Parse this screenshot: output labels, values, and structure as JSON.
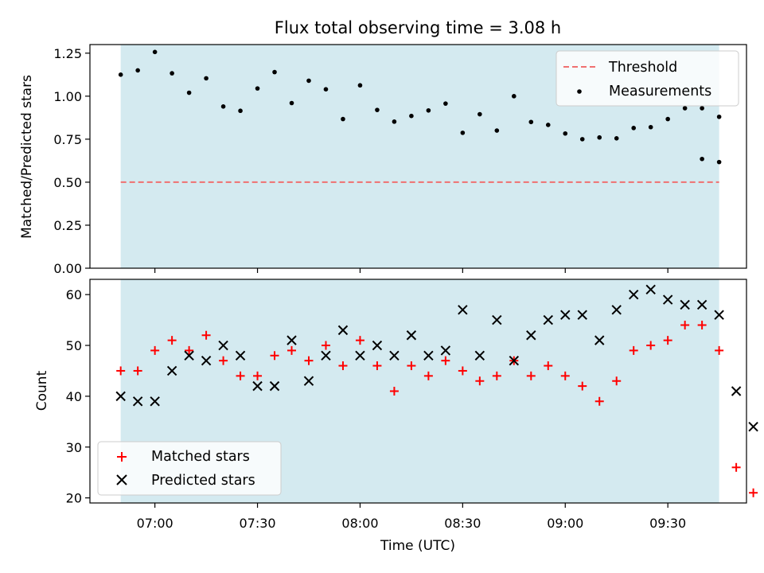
{
  "chart_data": [
    {
      "type": "scatter",
      "title": "Flux total observing time = 3.08 h",
      "xlabel": "",
      "ylabel": "Matched/Predicted stars",
      "x_ticks": [
        "07:00",
        "07:30",
        "08:00",
        "08:30",
        "09:00",
        "09:30"
      ],
      "x_tick_times": [
        "07:00",
        "07:30",
        "08:00",
        "08:30",
        "09:00",
        "09:30"
      ],
      "xlim": [
        "06:41",
        "09:53"
      ],
      "ylim": [
        0,
        1.3
      ],
      "y_ticks": [
        "0.00",
        "0.25",
        "0.50",
        "0.75",
        "1.00",
        "1.25"
      ],
      "y_tick_values": [
        0,
        0.25,
        0.5,
        0.75,
        1.0,
        1.25
      ],
      "shaded_span": [
        "06:50",
        "09:45"
      ],
      "shaded_color": "#d4eaf0",
      "threshold": {
        "name": "Threshold",
        "value": 0.5,
        "color": "#f07070"
      },
      "x": [
        "06:50",
        "06:55",
        "07:00",
        "07:05",
        "07:10",
        "07:15",
        "07:20",
        "07:25",
        "07:30",
        "07:35",
        "07:40",
        "07:45",
        "07:50",
        "07:55",
        "08:00",
        "08:05",
        "08:10",
        "08:15",
        "08:20",
        "08:25",
        "08:30",
        "08:35",
        "08:40",
        "08:45",
        "08:50",
        "08:55",
        "09:00",
        "09:05",
        "09:10",
        "09:15",
        "09:20",
        "09:25",
        "09:30",
        "09:35",
        "09:40",
        "09:45"
      ],
      "series": [
        {
          "name": "Measurements",
          "color": "#000000",
          "marker": "dot",
          "values": [
            1.125,
            1.15,
            1.257,
            1.133,
            1.02,
            1.104,
            0.94,
            0.915,
            1.045,
            1.14,
            0.96,
            1.09,
            1.04,
            0.867,
            1.063,
            0.92,
            0.852,
            0.885,
            0.917,
            0.957,
            0.787,
            0.895,
            0.8,
            1.0,
            0.85,
            0.833,
            0.783,
            0.75,
            0.76,
            0.755,
            0.815,
            0.82,
            0.867,
            0.93,
            0.93,
            0.88
          ]
        }
      ],
      "extra_points": {
        "x": [
          "09:40",
          "09:45"
        ],
        "values": [
          0.635,
          0.617
        ]
      },
      "legend_position": "top-right"
    },
    {
      "type": "scatter",
      "title": "",
      "xlabel": "Time (UTC)",
      "ylabel": "Count",
      "x_ticks": [
        "07:00",
        "07:30",
        "08:00",
        "08:30",
        "09:00",
        "09:30"
      ],
      "xlim": [
        "06:41",
        "09:53"
      ],
      "ylim": [
        19,
        63
      ],
      "y_ticks": [
        "20",
        "30",
        "40",
        "50",
        "60"
      ],
      "y_tick_values": [
        20,
        30,
        40,
        50,
        60
      ],
      "x": [
        "06:50",
        "06:55",
        "07:00",
        "07:05",
        "07:10",
        "07:15",
        "07:20",
        "07:25",
        "07:30",
        "07:35",
        "07:40",
        "07:45",
        "07:50",
        "07:55",
        "08:00",
        "08:05",
        "08:10",
        "08:15",
        "08:20",
        "08:25",
        "08:30",
        "08:35",
        "08:40",
        "08:45",
        "08:50",
        "08:55",
        "09:00",
        "09:05",
        "09:10",
        "09:15",
        "09:20",
        "09:25",
        "09:30",
        "09:35",
        "09:40",
        "09:45",
        "09:50",
        "09:55"
      ],
      "series": [
        {
          "name": "Matched stars",
          "color": "#ff0000",
          "marker": "plus",
          "values": [
            45,
            45,
            49,
            51,
            49,
            52,
            47,
            44,
            44,
            48,
            49,
            47,
            50,
            46,
            51,
            46,
            41,
            46,
            44,
            47,
            45,
            43,
            44,
            47,
            44,
            46,
            44,
            42,
            39,
            43,
            49,
            50,
            51,
            54,
            54,
            49,
            26,
            21
          ]
        },
        {
          "name": "Predicted stars",
          "color": "#000000",
          "marker": "x",
          "values": [
            40,
            39,
            39,
            45,
            48,
            47,
            50,
            48,
            42,
            42,
            51,
            43,
            48,
            53,
            48,
            50,
            48,
            52,
            48,
            49,
            57,
            48,
            55,
            47,
            52,
            55,
            56,
            56,
            51,
            57,
            60,
            61,
            59,
            58,
            58,
            56,
            41,
            34
          ]
        }
      ],
      "legend_position": "bottom-left"
    }
  ]
}
